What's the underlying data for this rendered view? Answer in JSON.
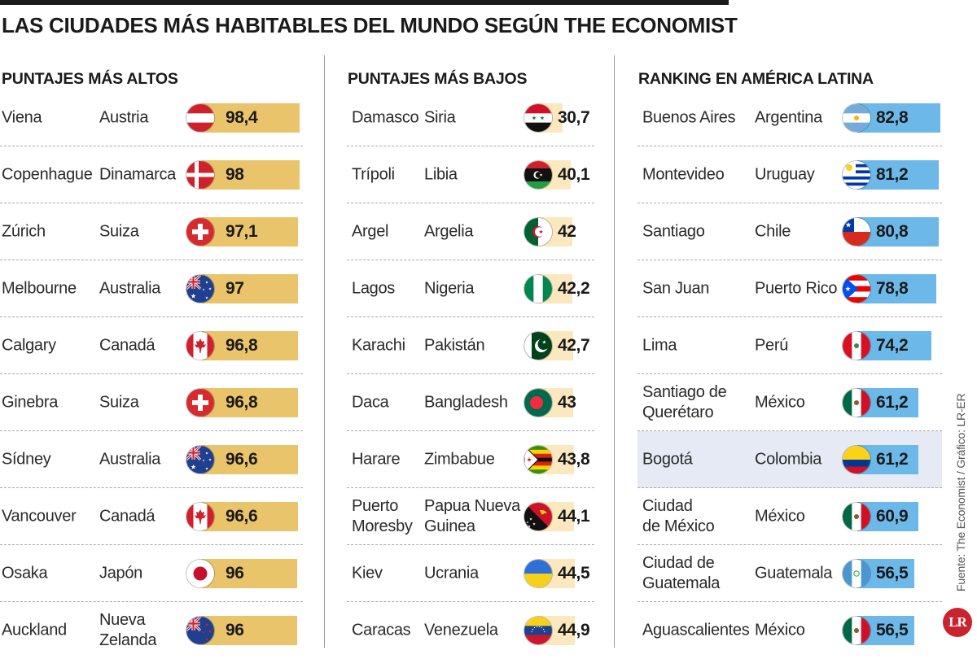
{
  "title": "LAS CIUDADES MÁS HABITABLES DEL MUNDO SEGÚN THE ECONOMIST",
  "source": "Fuente: The Economist / Gráfico: LR-ER",
  "logo_text": "LR",
  "chart_data": [
    {
      "type": "bar",
      "title": "PUNTAJES MÁS ALTOS",
      "bar_color": "#e9c46a",
      "rows": [
        {
          "city": "Viena",
          "country": "Austria",
          "value": 98.4,
          "label": "98,4",
          "flag": "austria-flag"
        },
        {
          "city": "Copenhague",
          "country": "Dinamarca",
          "value": 98,
          "label": "98",
          "flag": "denmark-flag"
        },
        {
          "city": "Zúrich",
          "country": "Suiza",
          "value": 97.1,
          "label": "97,1",
          "flag": "switzerland-flag"
        },
        {
          "city": "Melbourne",
          "country": "Australia",
          "value": 97,
          "label": "97",
          "flag": "australia-flag"
        },
        {
          "city": "Calgary",
          "country": "Canadá",
          "value": 96.8,
          "label": "96,8",
          "flag": "canada-flag"
        },
        {
          "city": "Ginebra",
          "country": "Suiza",
          "value": 96.8,
          "label": "96,8",
          "flag": "switzerland-flag"
        },
        {
          "city": "Sídney",
          "country": "Australia",
          "value": 96.6,
          "label": "96,6",
          "flag": "australia-flag"
        },
        {
          "city": "Vancouver",
          "country": "Canadá",
          "value": 96.6,
          "label": "96,6",
          "flag": "canada-flag"
        },
        {
          "city": "Osaka",
          "country": "Japón",
          "value": 96,
          "label": "96",
          "flag": "japan-flag"
        },
        {
          "city": "Auckland",
          "country": "Nueva\nZelanda",
          "value": 96,
          "label": "96",
          "flag": "new-zealand-flag"
        }
      ]
    },
    {
      "type": "bar",
      "title": "PUNTAJES MÁS BAJOS",
      "bar_color": "#fbe8bf",
      "rows": [
        {
          "city": "Damasco",
          "country": "Siria",
          "value": 30.7,
          "label": "30,7",
          "flag": "syria-flag"
        },
        {
          "city": "Trípoli",
          "country": "Libia",
          "value": 40.1,
          "label": "40,1",
          "flag": "libya-flag"
        },
        {
          "city": "Argel",
          "country": "Argelia",
          "value": 42,
          "label": "42",
          "flag": "algeria-flag"
        },
        {
          "city": "Lagos",
          "country": "Nigeria",
          "value": 42.2,
          "label": "42,2",
          "flag": "nigeria-flag"
        },
        {
          "city": "Karachi",
          "country": "Pakistán",
          "value": 42.7,
          "label": "42,7",
          "flag": "pakistan-flag"
        },
        {
          "city": "Daca",
          "country": "Bangladesh",
          "value": 43,
          "label": "43",
          "flag": "bangladesh-flag"
        },
        {
          "city": "Harare",
          "country": "Zimbabue",
          "value": 43.8,
          "label": "43,8",
          "flag": "zimbabwe-flag"
        },
        {
          "city": "Puerto\nMoresby",
          "country": "Papua Nueva\nGuinea",
          "value": 44.1,
          "label": "44,1",
          "flag": "papua-new-guinea-flag"
        },
        {
          "city": "Kiev",
          "country": "Ucrania",
          "value": 44.5,
          "label": "44,5",
          "flag": "ukraine-flag"
        },
        {
          "city": "Caracas",
          "country": "Venezuela",
          "value": 44.9,
          "label": "44,9",
          "flag": "venezuela-flag"
        }
      ]
    },
    {
      "type": "bar",
      "title": "RANKING EN AMÉRICA LATINA",
      "bar_color": "#6cb8e8",
      "highlight_color": "#e5eaf4",
      "rows": [
        {
          "city": "Buenos Aires",
          "country": "Argentina",
          "value": 82.8,
          "label": "82,8",
          "flag": "argentina-flag"
        },
        {
          "city": "Montevideo",
          "country": "Uruguay",
          "value": 81.2,
          "label": "81,2",
          "flag": "uruguay-flag"
        },
        {
          "city": "Santiago",
          "country": "Chile",
          "value": 80.8,
          "label": "80,8",
          "flag": "chile-flag"
        },
        {
          "city": "San Juan",
          "country": "Puerto Rico",
          "value": 78.8,
          "label": "78,8",
          "flag": "puerto-rico-flag"
        },
        {
          "city": "Lima",
          "country": "Perú",
          "value": 74.2,
          "label": "74,2",
          "flag": "peru-flag"
        },
        {
          "city": "Santiago de\nQuerétaro",
          "country": "México",
          "value": 61.2,
          "label": "61,2",
          "flag": "mexico-flag"
        },
        {
          "city": "Bogotá",
          "country": "Colombia",
          "value": 61.2,
          "label": "61,2",
          "flag": "colombia-flag",
          "highlight": true
        },
        {
          "city": "Ciudad\nde México",
          "country": "México",
          "value": 60.9,
          "label": "60,9",
          "flag": "mexico-flag"
        },
        {
          "city": "Ciudad de\nGuatemala",
          "country": "Guatemala",
          "value": 56.5,
          "label": "56,5",
          "flag": "guatemala-flag"
        },
        {
          "city": "Aguascalientes",
          "country": "México",
          "value": 56.5,
          "label": "56,5",
          "flag": "mexico-flag"
        }
      ]
    }
  ]
}
